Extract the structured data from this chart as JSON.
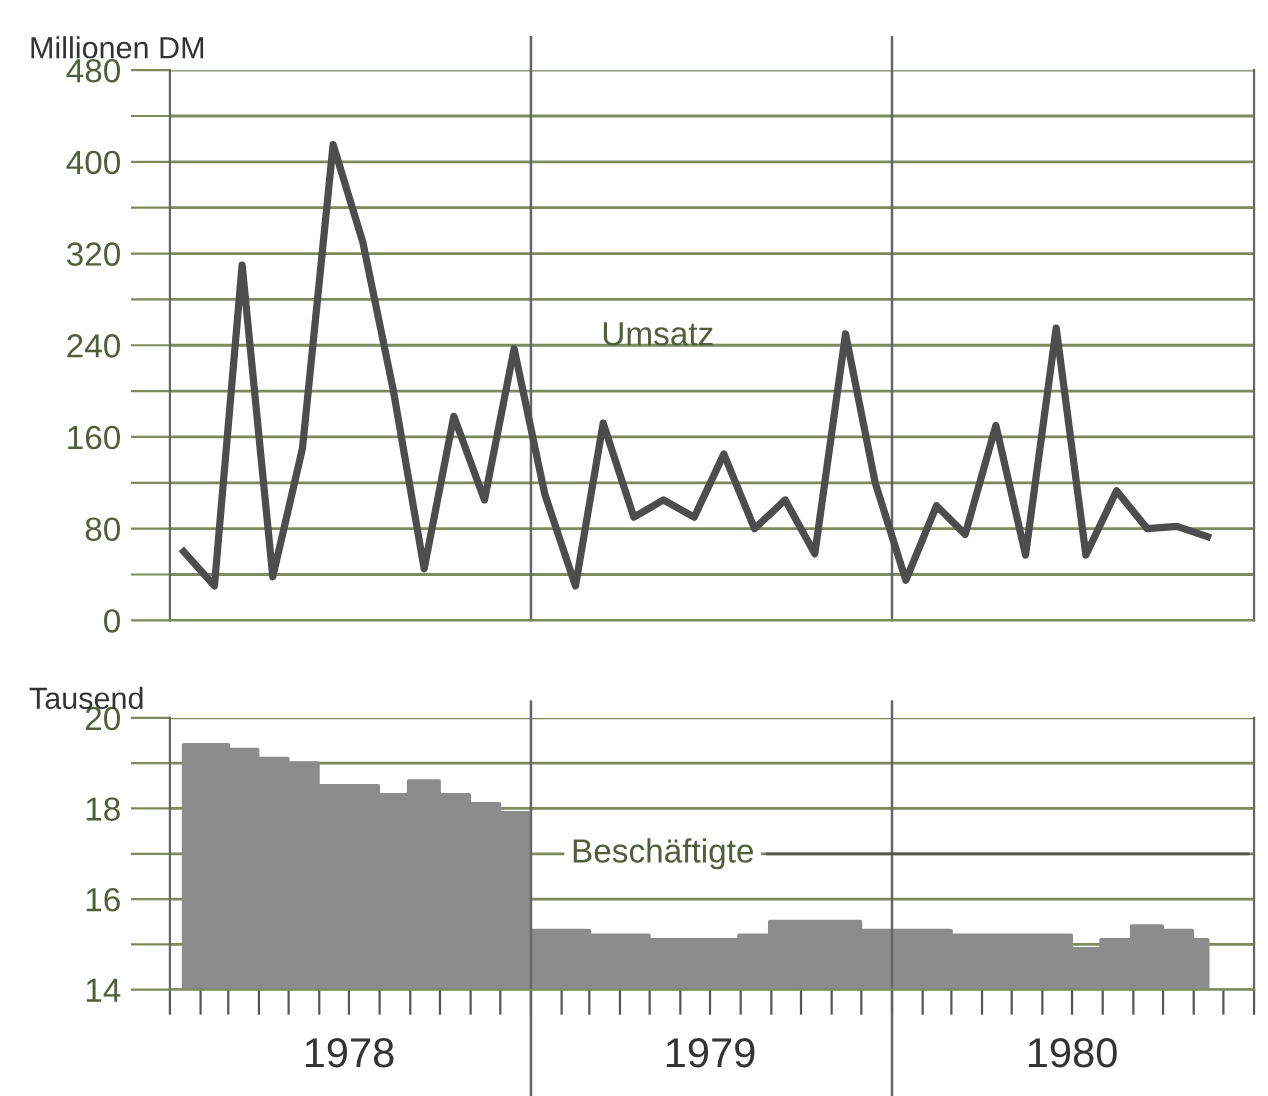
{
  "chart_data": [
    {
      "type": "line",
      "ylabel": "Millionen DM",
      "xlim": [
        "1978-01-01",
        "1981-01-01"
      ],
      "ylim": [
        0,
        480
      ],
      "yticks": [
        0,
        {
          "value": 40,
          "label": null
        },
        80,
        {
          "value": 120,
          "label": null
        },
        160,
        {
          "value": 200,
          "label": null
        },
        240,
        {
          "value": 280,
          "label": null
        },
        320,
        {
          "value": 360,
          "label": null
        },
        400,
        {
          "value": 440,
          "label": null
        },
        480
      ],
      "grid": "y",
      "tick_labels": "y",
      "legend": false,
      "ref_lines": [
        {
          "axis": "x",
          "value": "1979-01-01",
          "label": null
        },
        {
          "axis": "x",
          "value": "1980-01-01",
          "label": null
        }
      ],
      "x": [
        "1978-01-15",
        "1978-02-15",
        "1978-03-15",
        "1978-04-15",
        "1978-05-15",
        "1978-06-15",
        "1978-07-15",
        "1978-08-15",
        "1978-09-15",
        "1978-10-15",
        "1978-11-15",
        "1978-12-15",
        "1979-01-15",
        "1979-02-15",
        "1979-03-15",
        "1979-04-15",
        "1979-05-15",
        "1979-06-15",
        "1979-07-15",
        "1979-08-15",
        "1979-09-15",
        "1979-10-15",
        "1979-11-15",
        "1979-12-15",
        "1980-01-15",
        "1980-02-15",
        "1980-03-15",
        "1980-04-15",
        "1980-05-15",
        "1980-06-15",
        "1980-07-15",
        "1980-08-15",
        "1980-09-15",
        "1980-10-15",
        "1980-11-15"
      ],
      "series": [
        {
          "name": "Umsatz",
          "color": "#4d4d4d",
          "values": [
            60,
            30,
            310,
            38,
            150,
            415,
            330,
            200,
            45,
            178,
            105,
            237,
            110,
            30,
            172,
            90,
            105,
            90,
            145,
            80,
            105,
            58,
            250,
            120,
            35,
            100,
            75,
            170,
            57,
            255,
            57,
            113,
            80,
            82,
            73
          ]
        }
      ]
    },
    {
      "type": "area",
      "ylabel": "Tausend",
      "xlim": [
        "1978-01-01",
        "1981-01-01"
      ],
      "ylim": [
        14,
        20
      ],
      "yticks": [
        14,
        {
          "value": 15,
          "label": null
        },
        16,
        {
          "value": 17,
          "label": null
        },
        18,
        {
          "value": 19,
          "label": null
        },
        20
      ],
      "grid": "y",
      "legend": false,
      "xticks": [
        {
          "value": "1978-01-01",
          "label": null
        },
        {
          "value": "1978-02-01",
          "label": null
        },
        {
          "value": "1978-03-01",
          "label": null
        },
        {
          "value": "1978-04-01",
          "label": null
        },
        {
          "value": "1978-05-01",
          "label": null
        },
        {
          "value": "1978-06-01",
          "label": null
        },
        {
          "value": "1978-07-01",
          "label": "1978"
        },
        {
          "value": "1978-08-01",
          "label": null
        },
        {
          "value": "1978-09-01",
          "label": null
        },
        {
          "value": "1978-10-01",
          "label": null
        },
        {
          "value": "1978-11-01",
          "label": null
        },
        {
          "value": "1978-12-01",
          "label": null
        },
        {
          "value": "1979-01-01",
          "label": null
        },
        {
          "value": "1979-02-01",
          "label": null
        },
        {
          "value": "1979-03-01",
          "label": null
        },
        {
          "value": "1979-04-01",
          "label": null
        },
        {
          "value": "1979-05-01",
          "label": null
        },
        {
          "value": "1979-06-01",
          "label": null
        },
        {
          "value": "1979-07-01",
          "label": "1979"
        },
        {
          "value": "1979-08-01",
          "label": null
        },
        {
          "value": "1979-09-01",
          "label": null
        },
        {
          "value": "1979-10-01",
          "label": null
        },
        {
          "value": "1979-11-01",
          "label": null
        },
        {
          "value": "1979-12-01",
          "label": null
        },
        {
          "value": "1980-01-01",
          "label": null
        },
        {
          "value": "1980-02-01",
          "label": null
        },
        {
          "value": "1980-03-01",
          "label": null
        },
        {
          "value": "1980-04-01",
          "label": null
        },
        {
          "value": "1980-05-01",
          "label": null
        },
        {
          "value": "1980-06-01",
          "label": null
        },
        {
          "value": "1980-07-01",
          "label": "1980"
        },
        {
          "value": "1980-08-01",
          "label": null
        },
        {
          "value": "1980-09-01",
          "label": null
        },
        {
          "value": "1980-10-01",
          "label": null
        },
        {
          "value": "1980-11-01",
          "label": null
        },
        {
          "value": "1980-12-01",
          "label": null
        },
        {
          "value": "1981-01-01",
          "label": null
        }
      ],
      "ref_lines": [
        {
          "axis": "x",
          "value": "1979-01-01",
          "label": null
        },
        {
          "axis": "x",
          "value": "1980-01-01",
          "label": null
        }
      ],
      "x": [
        "1978-01-15",
        "1978-02-15",
        "1978-03-15",
        "1978-04-15",
        "1978-05-15",
        "1978-06-15",
        "1978-07-15",
        "1978-08-15",
        "1978-09-15",
        "1978-10-15",
        "1978-11-15",
        "1978-12-15",
        "1979-01-15",
        "1979-02-15",
        "1979-03-15",
        "1979-04-15",
        "1979-05-15",
        "1979-06-15",
        "1979-07-15",
        "1979-08-15",
        "1979-09-15",
        "1979-10-15",
        "1979-11-15",
        "1979-12-15",
        "1980-01-15",
        "1980-02-15",
        "1980-03-15",
        "1980-04-15",
        "1980-05-15",
        "1980-06-15",
        "1980-07-15",
        "1980-08-15",
        "1980-09-15",
        "1980-10-15",
        "1980-11-15"
      ],
      "series": [
        {
          "name": "Beschäftigte",
          "color": "#8c8c8c",
          "values": [
            19.4,
            19.4,
            19.3,
            19.1,
            19.0,
            18.5,
            18.5,
            18.3,
            18.6,
            18.3,
            18.1,
            17.9,
            15.3,
            15.3,
            15.2,
            15.2,
            15.1,
            15.1,
            15.1,
            15.2,
            15.5,
            15.5,
            15.5,
            15.3,
            15.3,
            15.3,
            15.2,
            15.2,
            15.2,
            15.2,
            14.9,
            15.1,
            15.4,
            15.3,
            15.1
          ]
        }
      ]
    }
  ]
}
